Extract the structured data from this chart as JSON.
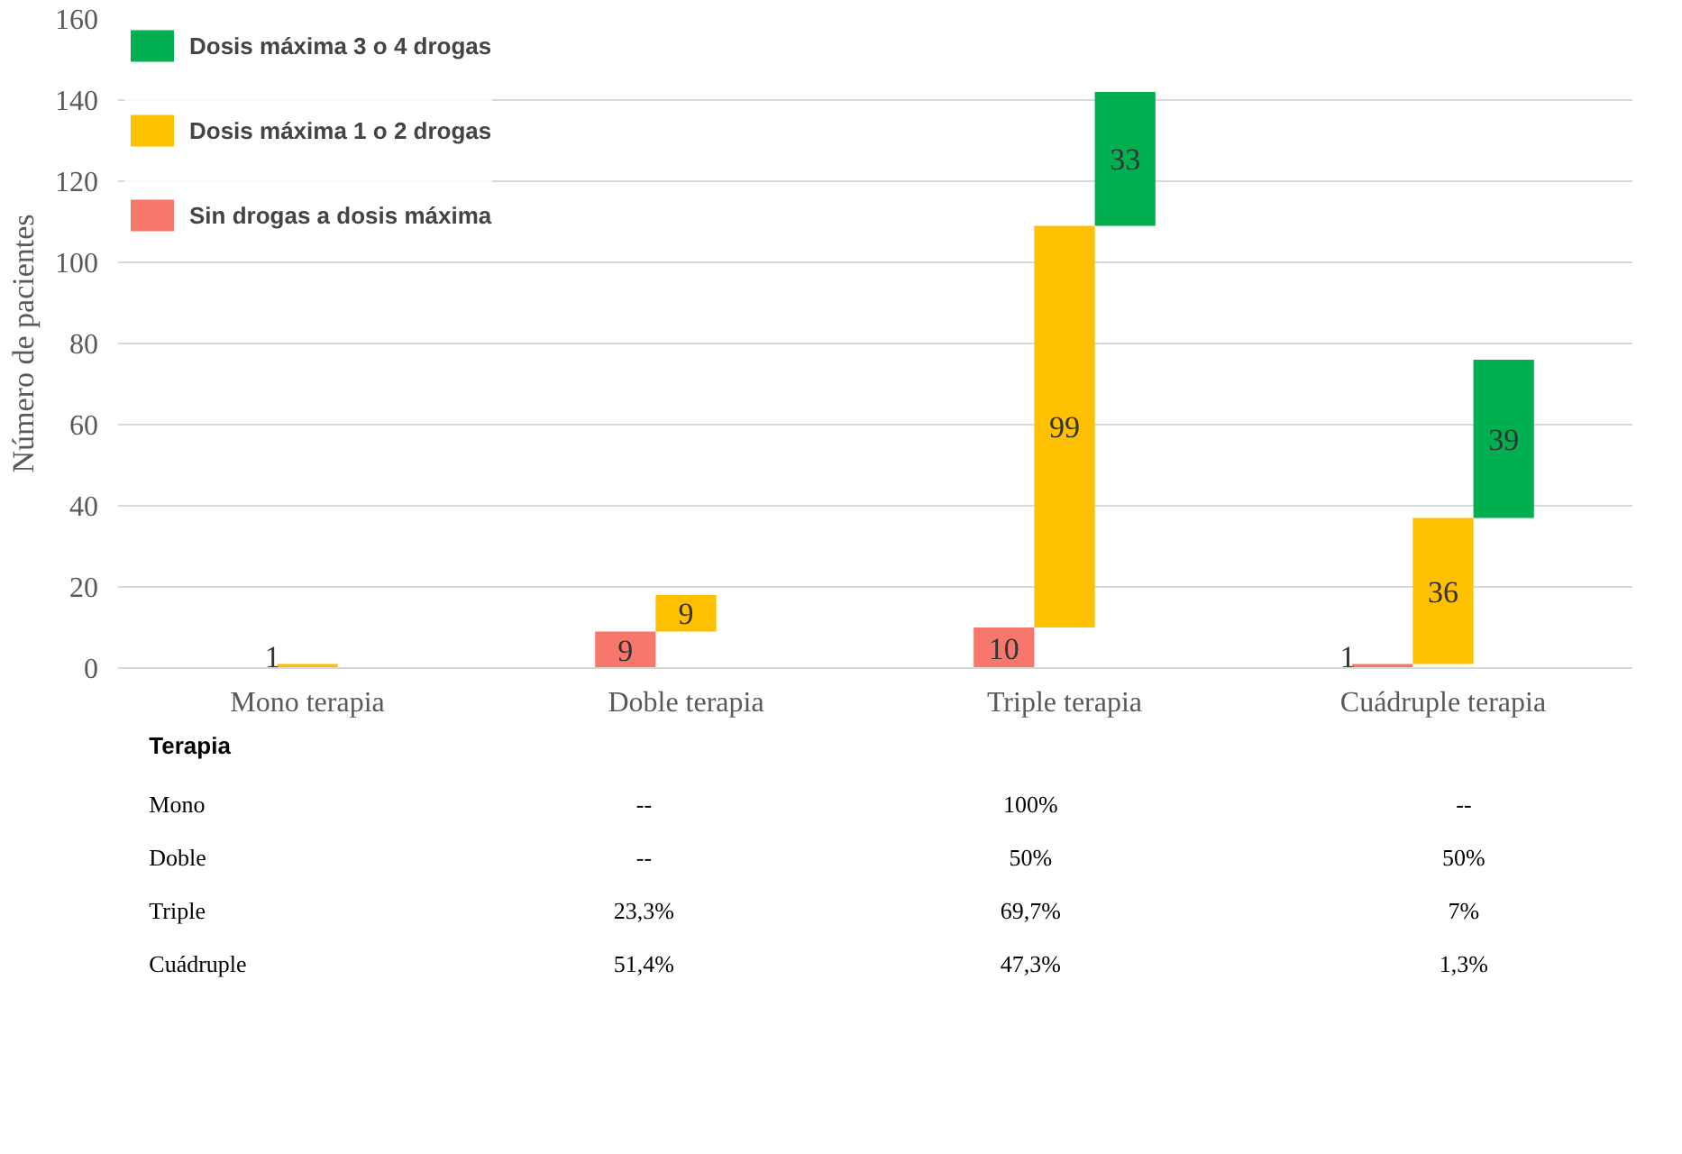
{
  "chart_data": {
    "type": "bar",
    "ylabel": "Número de pacientes",
    "categories": [
      "Mono terapia",
      "Doble terapia",
      "Triple terapia",
      "Cuádruple terapia"
    ],
    "series": [
      {
        "name": "Dosis máxima 3 o 4 drogas",
        "color": "#00b050",
        "values": [
          null,
          null,
          33,
          39
        ],
        "base": [
          null,
          null,
          109,
          37
        ]
      },
      {
        "name": "Dosis máxima 1 o 2 drogas",
        "color": "#ffc000",
        "values": [
          1,
          9,
          99,
          36
        ],
        "base": [
          0,
          9,
          10,
          1
        ]
      },
      {
        "name": "Sin drogas a dosis máxima",
        "color": "#f8776d",
        "values": [
          null,
          9,
          10,
          1
        ],
        "base": [
          null,
          0,
          0,
          0
        ]
      }
    ],
    "ylim": [
      0,
      160
    ],
    "yticks": [
      0,
      20,
      40,
      60,
      80,
      100,
      120,
      140,
      160
    ],
    "grid": "y",
    "legend": "top left",
    "data_labels": true,
    "annotations": [
      "Terapia",
      "Mono",
      "--",
      "100%",
      "--",
      "Doble",
      "--",
      "50%",
      "50%",
      "Triple",
      "23,3%",
      "69,7%",
      "7%",
      "Cuádruple",
      "51,4%",
      "47,3%",
      "1,3%"
    ]
  }
}
